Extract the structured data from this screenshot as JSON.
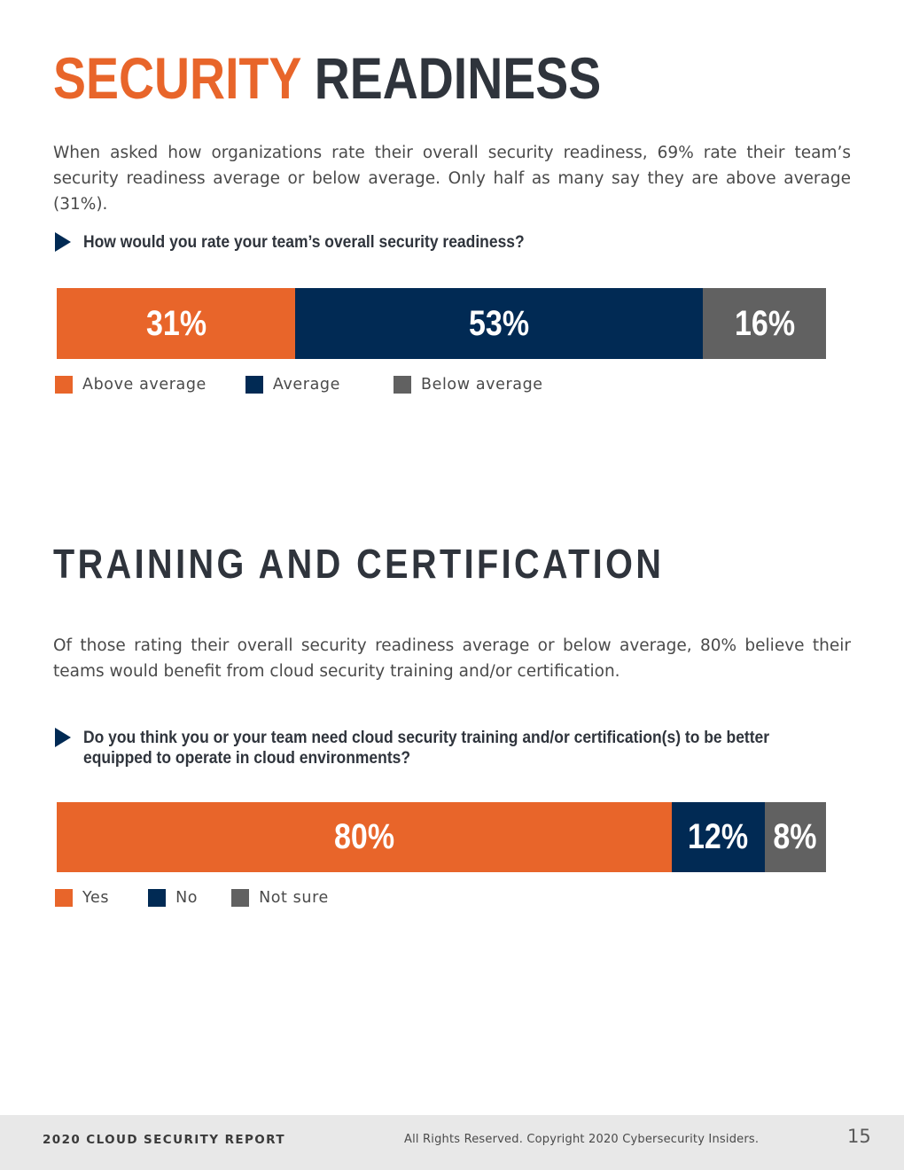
{
  "section1": {
    "title_accent": "SECURITY",
    "title_rest": "READINESS",
    "intro": "When asked how organizations rate their overall security readiness, 69% rate their team’s security readiness average or below average. Only half as many say they are above average (31%).",
    "question": "How would you rate your team’s overall security readiness?"
  },
  "section2": {
    "title": "TRAINING AND CERTIFICATION",
    "intro": "Of those rating their overall security readiness average or below average, 80% believe their teams would benefit from cloud security training and/or certification.",
    "question": "Do you think you or your team need cloud security training and/or certification(s) to be better equipped to operate in cloud environments?"
  },
  "colors": {
    "orange": "#e8652a",
    "navy": "#012a54",
    "gray": "#616161",
    "dark": "#2f343c"
  },
  "chart_data": [
    {
      "type": "bar",
      "orientation": "horizontal-stacked-100",
      "categories": [
        "Above average",
        "Average",
        "Below average"
      ],
      "values": [
        31,
        53,
        16
      ],
      "labels": [
        "31%",
        "53%",
        "16%"
      ],
      "colors": [
        "#e8652a",
        "#012a54",
        "#616161"
      ],
      "legend": [
        "Above average",
        "Average",
        "Below average"
      ],
      "legend_position": "bottom-left"
    },
    {
      "type": "bar",
      "orientation": "horizontal-stacked-100",
      "categories": [
        "Yes",
        "No",
        "Not sure"
      ],
      "values": [
        80,
        12,
        8
      ],
      "labels": [
        "80%",
        "12%",
        "8%"
      ],
      "colors": [
        "#e8652a",
        "#012a54",
        "#616161"
      ],
      "legend": [
        "Yes",
        "No",
        "Not sure"
      ],
      "legend_position": "bottom-left"
    }
  ],
  "footer": {
    "report": "2020 CLOUD SECURITY REPORT",
    "copyright": "All Rights Reserved. Copyright 2020 Cybersecurity Insiders.",
    "page": "15"
  }
}
